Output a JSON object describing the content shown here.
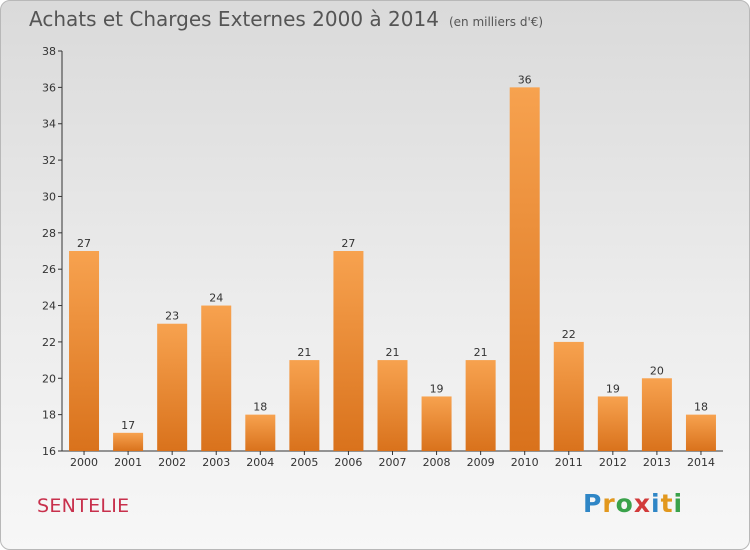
{
  "title": "Achats et Charges Externes 2000 à 2014",
  "subtitle": "(en milliers d'€)",
  "commune": "SENTELIE",
  "logo": [
    "P",
    "r",
    "o",
    "x",
    "i",
    "t",
    "i"
  ],
  "chart_data": {
    "type": "bar",
    "title": "Achats et Charges Externes 2000 à 2014",
    "subtitle": "(en milliers d'€)",
    "categories": [
      "2000",
      "2001",
      "2002",
      "2003",
      "2004",
      "2005",
      "2006",
      "2007",
      "2008",
      "2009",
      "2010",
      "2011",
      "2012",
      "2013",
      "2014"
    ],
    "values": [
      27,
      17,
      23,
      24,
      18,
      21,
      27,
      21,
      19,
      21,
      36,
      22,
      19,
      20,
      18
    ],
    "ylim": [
      16,
      38
    ],
    "yticks": [
      16,
      18,
      20,
      22,
      24,
      26,
      28,
      30,
      32,
      34,
      36,
      38
    ],
    "grid": false,
    "bar_color_top": "#f7a24f",
    "bar_color_bottom": "#d9721c"
  }
}
